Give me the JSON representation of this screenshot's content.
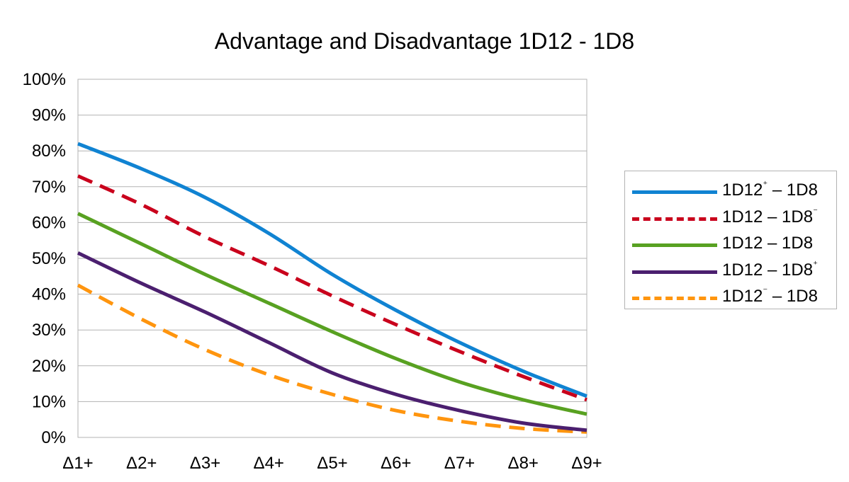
{
  "chart_data": {
    "type": "line",
    "title": "Advantage and Disadvantage 1D12 - 1D8",
    "xlabel": "",
    "ylabel": "",
    "categories": [
      "Δ1+",
      "Δ2+",
      "Δ3+",
      "Δ4+",
      "Δ5+",
      "Δ6+",
      "Δ7+",
      "Δ8+",
      "Δ9+"
    ],
    "ylim": [
      0,
      100
    ],
    "yticks": [
      "0%",
      "10%",
      "20%",
      "30%",
      "40%",
      "50%",
      "60%",
      "70%",
      "80%",
      "90%",
      "100%"
    ],
    "grid": true,
    "legend_position": "right",
    "series": [
      {
        "name": "1D12⁺ – 1D8",
        "base": "1D12",
        "sup": "⁺",
        "rest": " – 1D8",
        "color": "#1083d2",
        "dash": "solid",
        "values": [
          82,
          75,
          67,
          57,
          45.5,
          35.5,
          26.5,
          18.5,
          11.5
        ]
      },
      {
        "name": "1D12 – 1D8⁻",
        "base": "1D12 – 1D8",
        "sup": "⁻",
        "rest": "",
        "color": "#c9001c",
        "dash": "dashed",
        "values": [
          73,
          65,
          56,
          48,
          39.5,
          31.5,
          24,
          17,
          10.5
        ]
      },
      {
        "name": "1D12 – 1D8",
        "base": "1D12 – 1D8",
        "sup": "",
        "rest": "",
        "color": "#58a121",
        "dash": "solid",
        "values": [
          62.5,
          54,
          45.5,
          37.5,
          29.5,
          22,
          15.5,
          10.5,
          6.5
        ]
      },
      {
        "name": "1D12 – 1D8⁺",
        "base": "1D12 – 1D8",
        "sup": "⁺",
        "rest": "",
        "color": "#4b1f6f",
        "dash": "solid",
        "values": [
          51.5,
          43,
          35,
          26.5,
          18,
          12,
          7.5,
          4,
          2
        ]
      },
      {
        "name": "1D12⁻ – 1D8",
        "base": "1D12",
        "sup": "⁻",
        "rest": " – 1D8",
        "color": "#ff950e",
        "dash": "dashed",
        "values": [
          42.5,
          33,
          24.5,
          17.5,
          12,
          7.5,
          4.5,
          2.5,
          1.5
        ]
      }
    ]
  }
}
